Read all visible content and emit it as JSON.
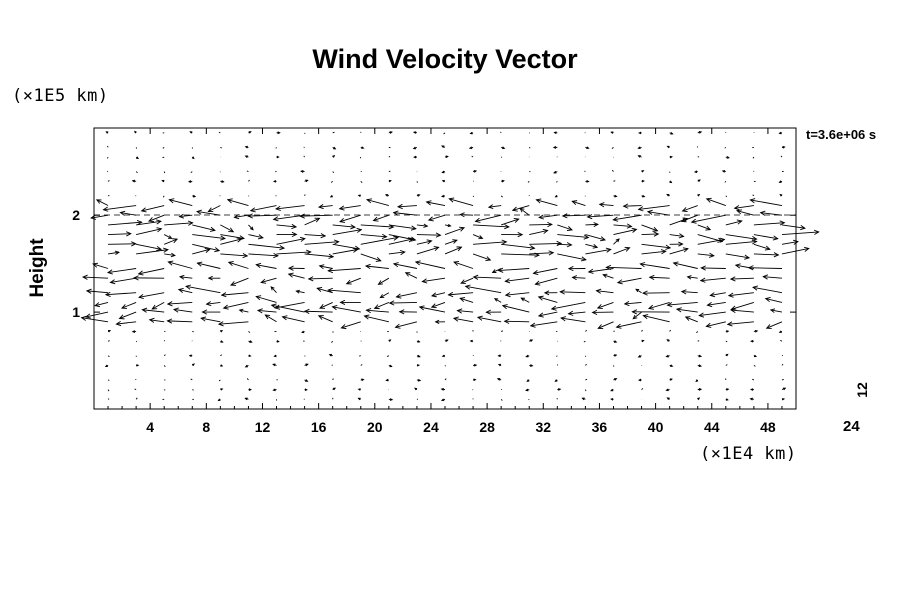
{
  "title": "Wind Velocity Vector",
  "y_scale_label": "(×1E5 km)",
  "x_scale_label": "(×1E4 km)",
  "ylabel": "Height",
  "time_label": "t=3.6e+06 s",
  "reference_vector": {
    "length_label": "12",
    "scale_label": "24"
  },
  "chart_data": {
    "type": "vector_field",
    "title": "Wind Velocity Vector",
    "xlabel": "(×1E4 km)",
    "ylabel": "Height",
    "y_units": "(×1E5 km)",
    "xlim": [
      0,
      50
    ],
    "ylim": [
      0,
      2.9
    ],
    "x_ticks": [
      4,
      8,
      12,
      16,
      20,
      24,
      28,
      32,
      36,
      40,
      44,
      48
    ],
    "x_tick_labels": [
      "4",
      "8",
      "12",
      "16",
      "20",
      "24",
      "28",
      "32",
      "36",
      "40",
      "44",
      "48"
    ],
    "y_ticks": [
      1,
      2
    ],
    "y_tick_labels": [
      "1",
      "2"
    ],
    "grid": false,
    "dashed_reference_heights": [
      2.0
    ],
    "strong_flow_band": [
      0.9,
      2.1
    ],
    "grid_x_spacing": 2,
    "grid_y_levels": [
      0.1,
      0.2,
      0.3,
      0.45,
      0.55,
      0.7,
      0.8,
      0.9,
      1.0,
      1.1,
      1.2,
      1.35,
      1.45,
      1.6,
      1.7,
      1.8,
      1.9,
      2.0,
      2.1,
      2.2,
      2.35,
      2.45,
      2.6,
      2.7,
      2.85
    ]
  }
}
